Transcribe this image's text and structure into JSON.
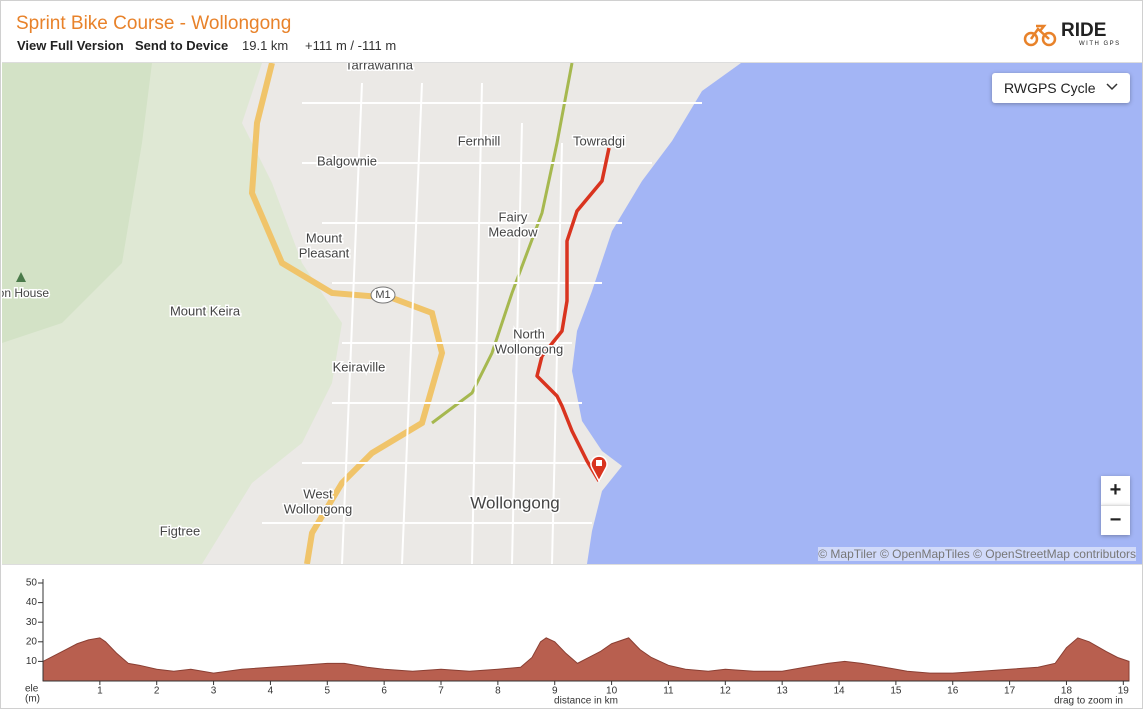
{
  "header": {
    "title": "Sprint Bike Course - Wollongong",
    "links": [
      "View Full Version",
      "Send to Device"
    ],
    "distance": "19.1 km",
    "elevation": "+111 m / -111 m",
    "logo": "RIDE",
    "logo_sub": "WITH GPS"
  },
  "map": {
    "layer_select": "RWGPS Cycle",
    "zoom_in": "+",
    "zoom_out": "−",
    "attribution": "© MapTiler © OpenMapTiles © OpenStreetMap contributors",
    "labels": [
      [
        "Tarrawanna"
      ],
      [
        "Fernhill"
      ],
      [
        "Towradgi"
      ],
      [
        "Balgownie"
      ],
      [
        "Fairy",
        "Meadow"
      ],
      [
        "Mount",
        "Pleasant"
      ],
      [
        "M1"
      ],
      [
        "lon House"
      ],
      [
        "Mount Keira"
      ],
      [
        "North",
        "Wollongong"
      ],
      [
        "Keiraville"
      ],
      [
        "West",
        "Wollongong"
      ],
      [
        "Wollongong"
      ],
      [
        "Figtree"
      ]
    ]
  },
  "chart_data": {
    "type": "area",
    "ylabel": [
      "ele",
      "(m)"
    ],
    "xlabel": "distance in km",
    "annotation": "drag to zoom in",
    "color": "#b85f4f",
    "x": [
      0,
      0.2,
      0.4,
      0.6,
      0.8,
      1.0,
      1.1,
      1.3,
      1.5,
      1.7,
      2,
      2.3,
      2.6,
      3,
      3.5,
      4,
      4.5,
      5,
      5.3,
      5.7,
      6,
      6.5,
      7,
      7.5,
      8,
      8.4,
      8.6,
      8.75,
      8.85,
      9.0,
      9.2,
      9.4,
      9.6,
      9.8,
      10.0,
      10.3,
      10.5,
      10.7,
      11,
      11.3,
      11.7,
      12,
      12.5,
      13,
      13.4,
      13.8,
      14.1,
      14.4,
      14.8,
      15.2,
      15.6,
      16,
      16.5,
      17,
      17.5,
      17.8,
      18,
      18.2,
      18.4,
      18.7,
      18.9,
      19.1
    ],
    "values": [
      10,
      13,
      16,
      19,
      21,
      22,
      20,
      14,
      9,
      8,
      6,
      5,
      6,
      4,
      6,
      7,
      8,
      9,
      9,
      7,
      6,
      5,
      6,
      5,
      6,
      7,
      12,
      20,
      22,
      20,
      14,
      9,
      12,
      15,
      19,
      22,
      16,
      12,
      8,
      6,
      5,
      6,
      5,
      5,
      7,
      9,
      10,
      9,
      7,
      5,
      4,
      4,
      5,
      6,
      7,
      9,
      17,
      22,
      20,
      15,
      12,
      10
    ],
    "xlim": [
      0,
      19.1
    ],
    "ylim": [
      0,
      50
    ],
    "xticks": [
      1,
      2,
      3,
      4,
      5,
      6,
      7,
      8,
      9,
      10,
      11,
      12,
      13,
      14,
      15,
      16,
      17,
      18,
      19
    ],
    "yticks": [
      10,
      20,
      30,
      40,
      50
    ]
  }
}
